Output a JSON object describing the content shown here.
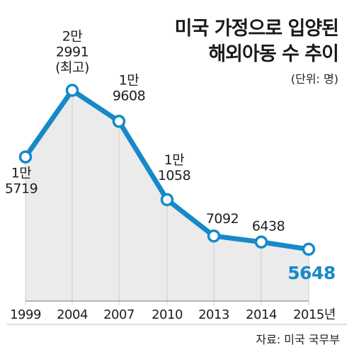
{
  "chart_data": {
    "type": "line",
    "title": "미국 가정으로 입양된",
    "subtitle": "해외아동 수 추이",
    "unit": "(단위: 명)",
    "source": "자료: 미국 국무부",
    "categories": [
      "1999",
      "2004",
      "2007",
      "2010",
      "2013",
      "2014",
      "2015년"
    ],
    "series": [
      {
        "values": [
          15719,
          22991,
          19608,
          11058,
          7092,
          6438,
          5648
        ],
        "labels": [
          [
            "1만",
            "5719"
          ],
          [
            "2만",
            "2991",
            "(최고)"
          ],
          [
            "1만",
            "9608"
          ],
          [
            "1만",
            "1058"
          ],
          [
            "7092"
          ],
          [
            "6438"
          ],
          [
            "5648"
          ]
        ]
      }
    ],
    "ylim": [
      0,
      24500
    ],
    "grid": false,
    "colors": {
      "line": "#1789c8",
      "area": "#ebebeb",
      "marker_fill": "#ffffff",
      "highlight": "#1789c8"
    }
  }
}
